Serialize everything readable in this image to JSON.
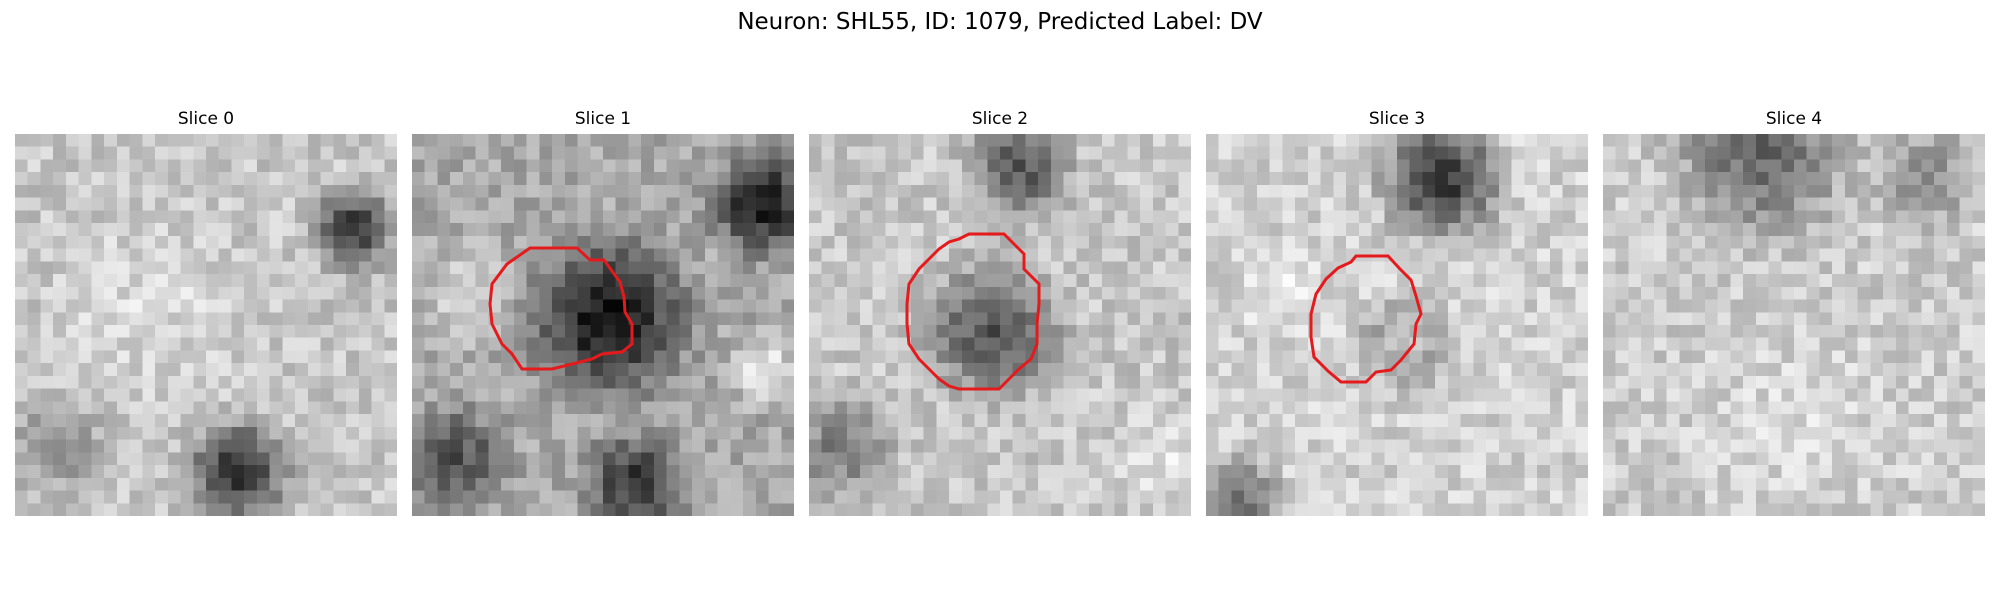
{
  "figure": {
    "title": "Neuron: SHL55, ID: 1079, Predicted Label: DV"
  },
  "colormap": "gray",
  "contour_color": "#e41a1c",
  "slices": [
    {
      "title": "Slice 0",
      "has_contour": false,
      "contour_radius": 0
    },
    {
      "title": "Slice 1",
      "has_contour": true,
      "contour_radius": 0.26
    },
    {
      "title": "Slice 2",
      "has_contour": true,
      "contour_radius": 0.23
    },
    {
      "title": "Slice 3",
      "has_contour": true,
      "contour_radius": 0.2
    },
    {
      "title": "Slice 4",
      "has_contour": false,
      "contour_radius": 0
    }
  ]
}
